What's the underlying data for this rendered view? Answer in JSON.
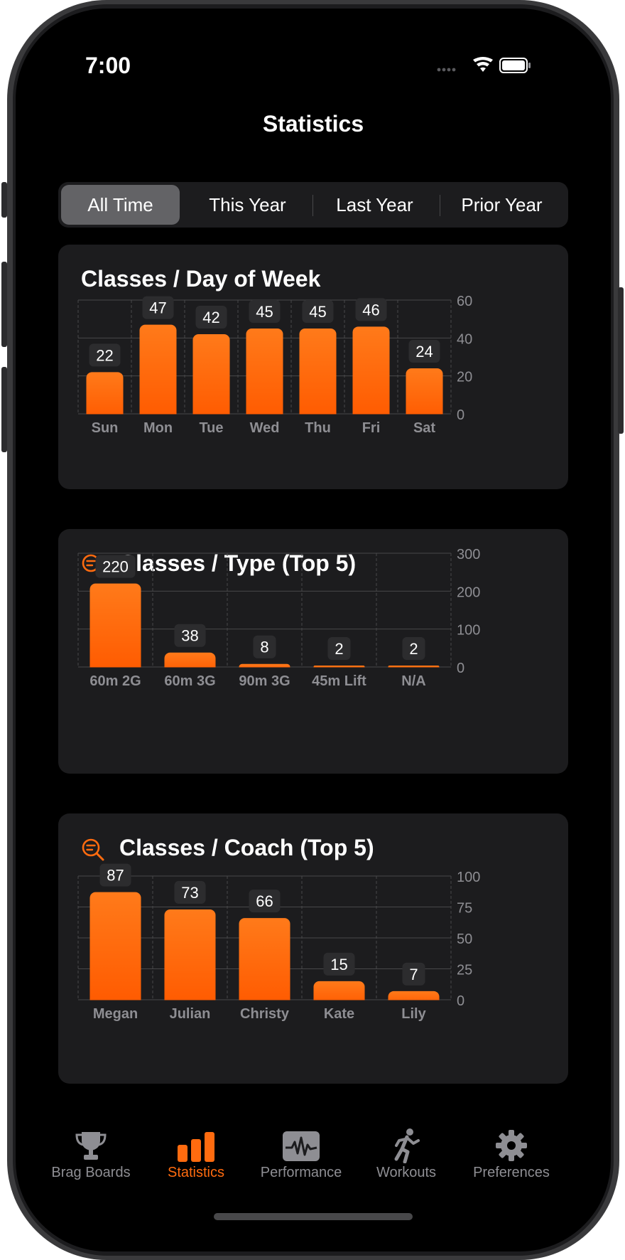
{
  "status_bar": {
    "time": "7:00"
  },
  "nav": {
    "title": "Statistics"
  },
  "segments": [
    "All Time",
    "This Year",
    "Last Year",
    "Prior Year"
  ],
  "selected_segment": "All Time",
  "cards": {
    "day_of_week": {
      "title": "Classes / Day of Week"
    },
    "type": {
      "title": "Classes / Type (Top 5)",
      "icon": "magnifier-list-icon"
    },
    "coach": {
      "title": "Classes / Coach (Top 5)",
      "icon": "magnifier-list-icon"
    }
  },
  "colors": {
    "accent": "#ff6b0f",
    "bar_top": "#ff7a1a",
    "bar_bottom": "#ff5a00",
    "card_bg": "#1c1c1e"
  },
  "chart_data": [
    {
      "type": "bar",
      "title": "Classes / Day of Week",
      "categories": [
        "Sun",
        "Mon",
        "Tue",
        "Wed",
        "Thu",
        "Fri",
        "Sat"
      ],
      "values": [
        22,
        47,
        42,
        45,
        45,
        46,
        24
      ],
      "ylim": [
        0,
        60
      ],
      "yticks": [
        0,
        20,
        40,
        60
      ],
      "grid": true
    },
    {
      "type": "bar",
      "title": "Classes / Type (Top 5)",
      "categories": [
        "60m 2G",
        "60m 3G",
        "90m 3G",
        "45m Lift",
        "N/A"
      ],
      "values": [
        220,
        38,
        8,
        2,
        2
      ],
      "ylim": [
        0,
        300
      ],
      "yticks": [
        0,
        100,
        200,
        300
      ],
      "grid": true
    },
    {
      "type": "bar",
      "title": "Classes / Coach (Top 5)",
      "categories": [
        "Megan",
        "Julian",
        "Christy",
        "Kate",
        "Lily"
      ],
      "values": [
        87,
        73,
        66,
        15,
        7
      ],
      "ylim": [
        0,
        100
      ],
      "yticks": [
        0,
        25,
        50,
        75,
        100
      ],
      "grid": true
    }
  ],
  "tab_bar": {
    "items": [
      {
        "label": "Brag Boards",
        "icon": "trophy-icon"
      },
      {
        "label": "Statistics",
        "icon": "bar-chart-icon"
      },
      {
        "label": "Performance",
        "icon": "waveform-monitor-icon"
      },
      {
        "label": "Workouts",
        "icon": "running-figure-icon"
      },
      {
        "label": "Preferences",
        "icon": "gear-icon"
      }
    ],
    "active": "Statistics"
  }
}
